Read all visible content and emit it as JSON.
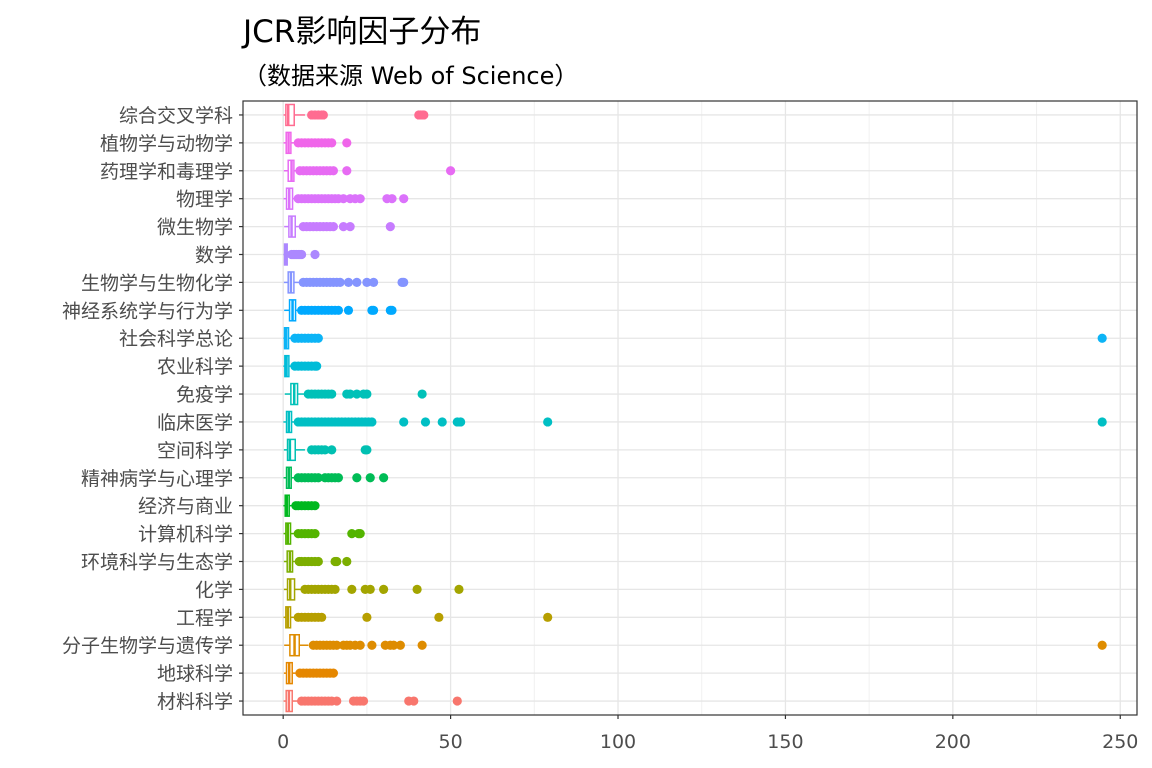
{
  "chart_data": {
    "type": "boxplot",
    "orientation": "horizontal",
    "title": "JCR影响因子分布",
    "subtitle": "（数据来源 Web of Science）",
    "xlim": [
      -12,
      255
    ],
    "x_ticks": [
      0,
      50,
      100,
      150,
      200,
      250
    ],
    "grid": true,
    "legend": "none",
    "categories": [
      {
        "name": "综合交叉学科",
        "color": "#FF6C91",
        "q1": 0.8,
        "median": 1.5,
        "q3": 3.3,
        "whisker_low": 0.1,
        "whisker_high": 6.5,
        "outliers": [
          8.5,
          9.5,
          10.5,
          11.5,
          12.0,
          40.5,
          41.0,
          41.5,
          42.0
        ]
      },
      {
        "name": "植物学与动物学",
        "color": "#F066EA",
        "q1": 0.9,
        "median": 1.6,
        "q3": 2.3,
        "whisker_low": 0.1,
        "whisker_high": 4.0,
        "outliers": [
          4.5,
          5.5,
          6.5,
          7.5,
          8.5,
          9.5,
          10.5,
          11.5,
          12.5,
          13.5,
          14.5,
          19.0
        ]
      },
      {
        "name": "药理学和毒理学",
        "color": "#E76BF3",
        "q1": 1.5,
        "median": 2.5,
        "q3": 3.2,
        "whisker_low": 0.2,
        "whisker_high": 4.5,
        "outliers": [
          5.0,
          6.0,
          7.0,
          8.0,
          9.0,
          10.0,
          11.0,
          12.0,
          13.0,
          14.0,
          15.0,
          19.0,
          50.0
        ]
      },
      {
        "name": "物理学",
        "color": "#DB72FB",
        "q1": 1.0,
        "median": 1.8,
        "q3": 2.8,
        "whisker_low": 0.1,
        "whisker_high": 4.0,
        "outliers": [
          4.5,
          5.5,
          6.5,
          7.5,
          8.5,
          9.5,
          10.5,
          11.5,
          12.5,
          13.5,
          14.5,
          15.5,
          16.5,
          18.0,
          20.0,
          21.5,
          23.0,
          31.0,
          32.5,
          36.0
        ]
      },
      {
        "name": "微生物学",
        "color": "#C77CFF",
        "q1": 1.7,
        "median": 2.5,
        "q3": 3.6,
        "whisker_low": 0.3,
        "whisker_high": 5.0,
        "outliers": [
          6.0,
          7.0,
          8.0,
          9.0,
          10.0,
          11.0,
          12.0,
          13.0,
          14.0,
          15.0,
          18.0,
          20.0,
          32.0
        ]
      },
      {
        "name": "数学",
        "color": "#AC88FF",
        "q1": 0.4,
        "median": 0.8,
        "q3": 1.2,
        "whisker_low": 0.05,
        "whisker_high": 2.0,
        "outliers": [
          2.5,
          3.0,
          3.5,
          4.0,
          4.5,
          5.0,
          5.5,
          9.5
        ]
      },
      {
        "name": "生物学与生物化学",
        "color": "#8494FF",
        "q1": 1.5,
        "median": 2.3,
        "q3": 3.2,
        "whisker_low": 0.2,
        "whisker_high": 5.0,
        "outliers": [
          6.0,
          7.0,
          8.0,
          9.0,
          10.0,
          11.0,
          12.0,
          13.0,
          14.0,
          15.0,
          16.0,
          17.0,
          19.5,
          22.0,
          25.0,
          27.0,
          35.5,
          36.0
        ]
      },
      {
        "name": "神经系统学与行为学",
        "color": "#00A9FF",
        "q1": 1.9,
        "median": 2.8,
        "q3": 3.7,
        "whisker_low": 0.3,
        "whisker_high": 5.0,
        "outliers": [
          5.5,
          6.5,
          7.5,
          8.5,
          9.5,
          10.5,
          11.5,
          12.5,
          13.5,
          14.5,
          15.5,
          16.5,
          19.5,
          26.5,
          27.0,
          32.0,
          32.5
        ]
      },
      {
        "name": "社会科学总论",
        "color": "#0CB4F6",
        "q1": 0.4,
        "median": 0.9,
        "q3": 1.6,
        "whisker_low": 0.05,
        "whisker_high": 3.0,
        "outliers": [
          3.5,
          4.5,
          5.5,
          6.5,
          7.5,
          8.5,
          9.5,
          10.5,
          244.6
        ]
      },
      {
        "name": "农业科学",
        "color": "#00BCD8",
        "q1": 0.5,
        "median": 1.0,
        "q3": 1.7,
        "whisker_low": 0.05,
        "whisker_high": 3.0,
        "outliers": [
          3.5,
          4.5,
          5.5,
          6.5,
          7.5,
          8.5,
          9.5,
          10.0
        ]
      },
      {
        "name": "免疫学",
        "color": "#00C1B8",
        "q1": 2.3,
        "median": 3.3,
        "q3": 4.3,
        "whisker_low": 0.5,
        "whisker_high": 6.5,
        "outliers": [
          7.5,
          8.5,
          9.5,
          10.5,
          11.5,
          12.5,
          13.5,
          14.5,
          19.0,
          20.0,
          22.0,
          24.0,
          25.0,
          41.5
        ]
      },
      {
        "name": "临床医学",
        "color": "#00BFC4",
        "q1": 1.0,
        "median": 1.7,
        "q3": 2.5,
        "whisker_low": 0.05,
        "whisker_high": 4.0,
        "outliers": [
          4.5,
          5.5,
          6.5,
          7.5,
          8.5,
          9.5,
          10.5,
          11.5,
          12.5,
          13.5,
          14.5,
          15.5,
          16.5,
          17.5,
          18.5,
          19.5,
          20.5,
          21.5,
          22.5,
          23.5,
          24.5,
          25.5,
          26.5,
          36.0,
          42.5,
          47.5,
          52.0,
          53.0,
          79.0,
          244.6
        ]
      },
      {
        "name": "空间科学",
        "color": "#00C0B2",
        "q1": 1.3,
        "median": 2.0,
        "q3": 3.6,
        "whisker_low": 0.2,
        "whisker_high": 6.5,
        "outliers": [
          8.5,
          9.5,
          10.5,
          11.5,
          12.5,
          14.5,
          24.5,
          25.0
        ]
      },
      {
        "name": "精神病学与心理学",
        "color": "#00BC56",
        "q1": 1.0,
        "median": 1.7,
        "q3": 2.4,
        "whisker_low": 0.1,
        "whisker_high": 4.0,
        "outliers": [
          4.5,
          5.5,
          6.5,
          7.5,
          8.5,
          9.5,
          10.5,
          12.5,
          13.5,
          14.5,
          15.5,
          16.5,
          22.0,
          26.0,
          30.0
        ]
      },
      {
        "name": "经济与商业",
        "color": "#00B81F",
        "q1": 0.6,
        "median": 1.1,
        "q3": 1.8,
        "whisker_low": 0.05,
        "whisker_high": 3.3,
        "outliers": [
          3.8,
          4.5,
          5.5,
          6.5,
          7.5,
          8.5,
          9.5
        ]
      },
      {
        "name": "计算机科学",
        "color": "#53B400",
        "q1": 0.8,
        "median": 1.4,
        "q3": 2.2,
        "whisker_low": 0.1,
        "whisker_high": 3.8,
        "outliers": [
          4.5,
          5.5,
          6.5,
          7.5,
          8.5,
          9.5,
          20.5,
          22.5,
          23.0
        ]
      },
      {
        "name": "环境科学与生态学",
        "color": "#7CAE00",
        "q1": 1.2,
        "median": 2.0,
        "q3": 2.8,
        "whisker_low": 0.2,
        "whisker_high": 4.3,
        "outliers": [
          4.8,
          5.5,
          6.5,
          7.5,
          8.5,
          9.5,
          10.5,
          15.5,
          16.0,
          19.0
        ]
      },
      {
        "name": "化学",
        "color": "#A3A500",
        "q1": 1.3,
        "median": 2.1,
        "q3": 3.4,
        "whisker_low": 0.2,
        "whisker_high": 5.5,
        "outliers": [
          6.5,
          7.5,
          8.5,
          9.5,
          10.5,
          11.5,
          12.5,
          13.5,
          14.5,
          15.5,
          20.5,
          24.5,
          26.0,
          30.0,
          40.0,
          52.5
        ]
      },
      {
        "name": "工程学",
        "color": "#B79F00",
        "q1": 0.8,
        "median": 1.4,
        "q3": 2.2,
        "whisker_low": 0.1,
        "whisker_high": 4.0,
        "outliers": [
          4.5,
          5.5,
          6.5,
          7.5,
          8.5,
          9.5,
          10.5,
          11.5,
          25.0,
          46.5,
          79.0
        ]
      },
      {
        "name": "分子生物学与遗传学",
        "color": "#DE8C00",
        "q1": 2.0,
        "median": 3.4,
        "q3": 4.8,
        "whisker_low": 0.3,
        "whisker_high": 7.5,
        "outliers": [
          9.0,
          10.0,
          11.0,
          12.0,
          13.0,
          14.0,
          15.0,
          16.0,
          18.0,
          19.0,
          20.0,
          21.5,
          23.0,
          26.5,
          30.5,
          32.0,
          33.0,
          35.0,
          41.5,
          244.6
        ]
      },
      {
        "name": "地球科学",
        "color": "#E58700",
        "q1": 1.0,
        "median": 1.8,
        "q3": 2.7,
        "whisker_low": 0.2,
        "whisker_high": 4.5,
        "outliers": [
          5.0,
          6.0,
          7.0,
          8.0,
          9.0,
          10.0,
          11.0,
          12.0,
          13.0,
          14.0,
          15.0
        ]
      },
      {
        "name": "材料科学",
        "color": "#F8766D",
        "q1": 0.9,
        "median": 1.7,
        "q3": 2.7,
        "whisker_low": 0.1,
        "whisker_high": 4.5,
        "outliers": [
          5.5,
          6.5,
          7.5,
          8.5,
          9.5,
          10.5,
          11.5,
          12.5,
          13.5,
          14.5,
          16.0,
          21.0,
          22.0,
          23.0,
          24.0,
          37.5,
          39.0,
          52.0
        ]
      }
    ]
  }
}
